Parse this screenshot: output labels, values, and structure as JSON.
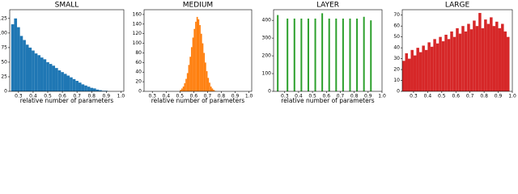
{
  "chart_data": [
    {
      "type": "histogram",
      "title": "SMALL",
      "x_label": "relative number of parameters",
      "color": "#1f77b4",
      "bins": [
        0.25,
        0.27,
        0.29,
        0.31,
        0.33,
        0.35,
        0.37,
        0.39,
        0.41,
        0.43,
        0.45,
        0.47,
        0.49,
        0.51,
        0.53,
        0.55,
        0.57,
        0.59,
        0.61,
        0.63,
        0.65,
        0.67,
        0.69,
        0.71,
        0.73,
        0.75,
        0.77,
        0.79,
        0.81,
        0.83,
        0.85,
        0.87,
        0.89,
        0.91
      ],
      "values": [
        115,
        125,
        110,
        95,
        88,
        80,
        75,
        70,
        65,
        62,
        58,
        55,
        50,
        47,
        44,
        40,
        36,
        33,
        30,
        27,
        24,
        21,
        18,
        15,
        12,
        10,
        8,
        6,
        5,
        3,
        2,
        1,
        1
      ],
      "xlim": [
        0.24,
        1.02
      ],
      "ylim": [
        0,
        140
      ],
      "xticks": [
        0.3,
        0.4,
        0.5,
        0.6,
        0.7,
        0.8,
        0.9,
        {
          "value": 1,
          "label": "1.0"
        }
      ],
      "yticks": [
        0,
        25,
        50,
        75,
        100,
        125
      ]
    },
    {
      "type": "histogram",
      "title": "MEDIUM",
      "x_label": "relative number of parameters",
      "color": "#ff7f0e",
      "bins": [
        0.5,
        0.51,
        0.52,
        0.53,
        0.54,
        0.55,
        0.56,
        0.57,
        0.58,
        0.59,
        0.6,
        0.61,
        0.62,
        0.63,
        0.64,
        0.65,
        0.66,
        0.67,
        0.68,
        0.69,
        0.7,
        0.71,
        0.72,
        0.73,
        0.74,
        0.75,
        0.76
      ],
      "values": [
        3,
        6,
        10,
        17,
        26,
        38,
        55,
        72,
        92,
        112,
        130,
        145,
        155,
        150,
        138,
        120,
        100,
        80,
        60,
        42,
        28,
        18,
        10,
        6,
        3,
        1
      ],
      "xlim": [
        0.24,
        1.02
      ],
      "ylim": [
        0,
        170
      ],
      "xticks": [
        0.3,
        0.4,
        0.5,
        0.6,
        0.7,
        0.8,
        0.9,
        {
          "value": 1,
          "label": "1.0"
        }
      ],
      "yticks": [
        0,
        20,
        40,
        60,
        80,
        100,
        120,
        140,
        160
      ]
    },
    {
      "type": "bar",
      "title": "LAYER",
      "x_label": "relative number of parameters",
      "color": "#2ca02c",
      "x": [
        0.25,
        0.32,
        0.37,
        0.42,
        0.47,
        0.52,
        0.57,
        0.62,
        0.67,
        0.72,
        0.77,
        0.82,
        0.87,
        0.92
      ],
      "values": [
        430,
        410,
        410,
        410,
        410,
        410,
        440,
        410,
        410,
        410,
        410,
        410,
        420,
        400
      ],
      "xlim": [
        0.22,
        1.0
      ],
      "ylim": [
        0,
        460
      ],
      "xticks": [
        0.3,
        0.4,
        0.5,
        0.6,
        0.7,
        0.8,
        0.9,
        {
          "value": 1,
          "label": "1.0"
        }
      ],
      "yticks": [
        0,
        100,
        200,
        300,
        400
      ]
    },
    {
      "type": "histogram",
      "title": "LARGE",
      "color": "#d62728",
      "bins": [
        0.22,
        0.24,
        0.26,
        0.28,
        0.3,
        0.32,
        0.34,
        0.36,
        0.38,
        0.4,
        0.42,
        0.44,
        0.46,
        0.48,
        0.5,
        0.52,
        0.54,
        0.56,
        0.58,
        0.6,
        0.62,
        0.64,
        0.66,
        0.68,
        0.7,
        0.72,
        0.74,
        0.76,
        0.78,
        0.8,
        0.82,
        0.84,
        0.86,
        0.88,
        0.9,
        0.92,
        0.94,
        0.96,
        0.98
      ],
      "values": [
        28,
        35,
        30,
        38,
        33,
        40,
        36,
        42,
        38,
        45,
        41,
        48,
        44,
        50,
        46,
        52,
        48,
        55,
        50,
        58,
        53,
        60,
        55,
        62,
        57,
        65,
        60,
        72,
        58,
        66,
        62,
        68,
        60,
        64,
        58,
        62,
        55,
        50
      ],
      "xlim": [
        0.22,
        1.0
      ],
      "ylim": [
        0,
        75
      ],
      "xticks": [
        0.3,
        0.4,
        0.5,
        0.6,
        0.7,
        0.8,
        0.9,
        {
          "value": 1,
          "label": "1.0"
        }
      ],
      "yticks": [
        0,
        10,
        20,
        30,
        40,
        50,
        60,
        70
      ]
    }
  ]
}
